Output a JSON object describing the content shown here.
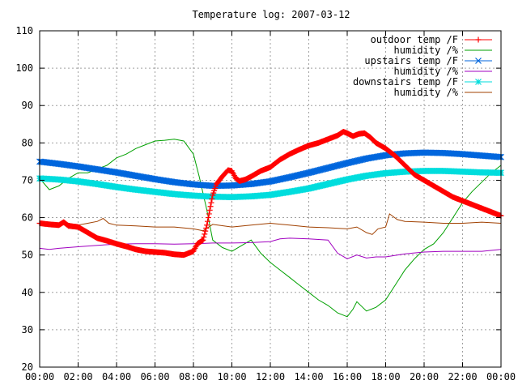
{
  "chart_data": {
    "type": "line",
    "title": "Temperature log: 2007-03-12",
    "xlabel": "",
    "ylabel": "",
    "xlim": [
      0,
      24
    ],
    "ylim": [
      20,
      110
    ],
    "grid": true,
    "legend_position": "top-right",
    "x_ticks": [
      "00:00",
      "02:00",
      "04:00",
      "06:00",
      "08:00",
      "10:00",
      "12:00",
      "14:00",
      "16:00",
      "18:00",
      "20:00",
      "22:00",
      "00:00"
    ],
    "y_ticks": [
      20,
      30,
      40,
      50,
      60,
      70,
      80,
      90,
      100,
      110
    ],
    "series": [
      {
        "name": "outdoor temp /F",
        "color": "#ff0000",
        "marker": "plus",
        "x": [
          0,
          0.5,
          1,
          1.25,
          1.5,
          2,
          2.5,
          3,
          3.5,
          4,
          4.5,
          5,
          5.5,
          6,
          6.5,
          7,
          7.5,
          8,
          8.2,
          8.5,
          8.7,
          8.85,
          9,
          9.2,
          9.5,
          9.8,
          10,
          10.2,
          10.4,
          10.7,
          11,
          11.5,
          12,
          12.5,
          13,
          13.5,
          14,
          14.5,
          15,
          15.5,
          15.8,
          16,
          16.3,
          16.6,
          16.9,
          17.2,
          17.5,
          18,
          18.5,
          19,
          19.5,
          20,
          20.5,
          21,
          21.5,
          22,
          22.5,
          23,
          23.5,
          24
        ],
        "y": [
          58.5,
          58.2,
          58,
          58.8,
          57.8,
          57.5,
          56,
          54.5,
          53.8,
          53,
          52.3,
          51.5,
          51,
          50.8,
          50.6,
          50.2,
          50,
          51,
          53,
          54,
          58,
          62,
          66,
          69,
          71,
          72.7,
          72.5,
          70.5,
          69.8,
          70.2,
          71,
          72.5,
          73.5,
          75.5,
          77,
          78.2,
          79.3,
          80,
          81,
          82,
          83,
          82.6,
          81.8,
          82.4,
          82.6,
          81.5,
          80,
          78.5,
          76.5,
          74,
          71.5,
          70,
          68.5,
          67,
          65.5,
          64.5,
          63.5,
          62.5,
          61.5,
          60.5
        ]
      },
      {
        "name": "humidity /%",
        "color": "#00a000",
        "marker": "none",
        "x": [
          0,
          0.5,
          1,
          1.5,
          2,
          2.5,
          3,
          3.5,
          4,
          4.5,
          5,
          5.5,
          6,
          6.5,
          7,
          7.5,
          8,
          8.3,
          8.7,
          9,
          9.5,
          10,
          10.5,
          11,
          11.5,
          12,
          12.5,
          13,
          13.5,
          14,
          14.5,
          15,
          15.5,
          16,
          16.3,
          16.5,
          16.8,
          17,
          17.5,
          18,
          18.5,
          19,
          19.5,
          20,
          20.5,
          21,
          21.5,
          22,
          22.5,
          23,
          23.5,
          24
        ],
        "y": [
          70.5,
          67.5,
          68.5,
          70.5,
          72,
          72,
          73,
          74,
          76,
          77,
          78.5,
          79.5,
          80.5,
          80.7,
          81,
          80.5,
          77,
          71,
          62,
          54,
          52,
          51,
          52.5,
          54,
          50.5,
          48,
          46,
          44,
          42,
          40,
          38,
          36.5,
          34.5,
          33.5,
          35.5,
          37.5,
          36,
          35,
          36,
          38,
          42,
          46,
          49,
          51.5,
          53,
          56,
          60,
          64,
          67,
          69.5,
          72,
          74
        ]
      },
      {
        "name": "upstairs temp /F",
        "color": "#0066dd",
        "marker": "cross",
        "x": [
          0,
          1,
          2,
          3,
          4,
          5,
          6,
          7,
          8,
          9,
          10,
          11,
          12,
          13,
          14,
          15,
          16,
          17,
          18,
          19,
          20,
          21,
          22,
          23,
          24
        ],
        "y": [
          75,
          74.4,
          73.7,
          72.9,
          72.1,
          71.2,
          70.3,
          69.5,
          68.9,
          68.5,
          68.6,
          69,
          69.7,
          70.8,
          72,
          73.3,
          74.6,
          75.8,
          76.7,
          77.2,
          77.4,
          77.3,
          77,
          76.6,
          76.2
        ]
      },
      {
        "name": "humidity /%",
        "color": "#a000c0",
        "marker": "none",
        "x": [
          0,
          0.5,
          1,
          2,
          3,
          4,
          5,
          6,
          7,
          8,
          9,
          10,
          11,
          12,
          12.5,
          13,
          14,
          15,
          15.5,
          16,
          16.5,
          17,
          17.5,
          18,
          19,
          20,
          21,
          22,
          23,
          24
        ],
        "y": [
          51.8,
          51.5,
          51.8,
          52.2,
          52.6,
          52.9,
          53,
          53,
          52.9,
          53,
          53.2,
          53.2,
          53.3,
          53.6,
          54.3,
          54.5,
          54.3,
          54,
          50.5,
          49,
          50,
          49.2,
          49.5,
          49.5,
          50.3,
          50.8,
          51,
          51,
          51,
          51.5
        ]
      },
      {
        "name": "downstairs temp /F",
        "color": "#00dddd",
        "marker": "star",
        "x": [
          0,
          1,
          2,
          3,
          4,
          5,
          6,
          7,
          8,
          9,
          10,
          11,
          12,
          13,
          14,
          15,
          16,
          17,
          18,
          19,
          20,
          21,
          22,
          23,
          24
        ],
        "y": [
          70.5,
          70.2,
          69.7,
          69,
          68.2,
          67.5,
          66.9,
          66.3,
          65.9,
          65.6,
          65.5,
          65.7,
          66.1,
          66.9,
          67.8,
          69,
          70.2,
          71.2,
          71.9,
          72.3,
          72.5,
          72.5,
          72.3,
          72.1,
          72
        ]
      },
      {
        "name": "humidity /%",
        "color": "#a04000",
        "marker": "none",
        "x": [
          0,
          0.5,
          1,
          1.5,
          2,
          2.5,
          3,
          3.3,
          3.6,
          4,
          5,
          6,
          7,
          8,
          8.5,
          9,
          10,
          11,
          12,
          13,
          14,
          15,
          16,
          16.5,
          17,
          17.3,
          17.6,
          18,
          18.2,
          18.6,
          19,
          20,
          21,
          22,
          23,
          24
        ],
        "y": [
          58,
          58,
          57.8,
          58.5,
          58,
          58.5,
          59,
          59.8,
          58.5,
          58,
          57.8,
          57.5,
          57.5,
          57,
          56.5,
          58.2,
          57.5,
          58,
          58.5,
          58,
          57.5,
          57.3,
          57,
          57.5,
          56,
          55.5,
          57,
          57.5,
          61,
          59.5,
          59,
          58.8,
          58.5,
          58.5,
          58.8,
          58.5
        ]
      }
    ]
  }
}
